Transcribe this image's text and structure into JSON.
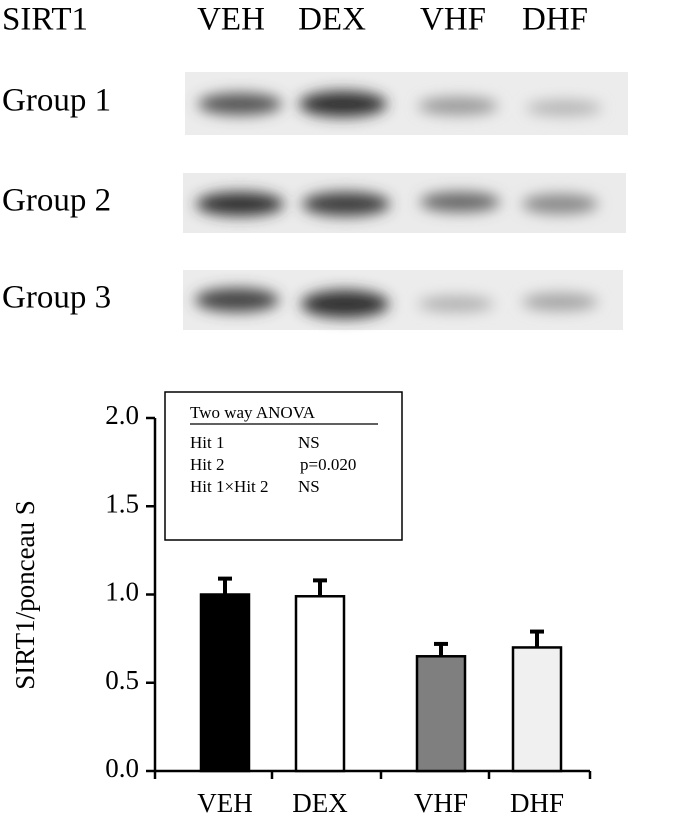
{
  "blot": {
    "label": "SIRT1",
    "lanes": [
      "VEH",
      "DEX",
      "VHF",
      "DHF"
    ],
    "groups": [
      "Group 1",
      "Group 2",
      "Group 3"
    ]
  },
  "chart_data": {
    "type": "bar",
    "ylabel": "SIRT1/ponceau S",
    "categories": [
      "VEH",
      "DEX",
      "VHF",
      "DHF"
    ],
    "values": [
      1.0,
      0.99,
      0.65,
      0.7
    ],
    "errors": [
      0.09,
      0.09,
      0.07,
      0.09
    ],
    "colors": [
      "#000000",
      "#ffffff",
      "#7f7f7f",
      "#f0f0f0"
    ],
    "ylim": [
      0,
      2
    ],
    "yticks": [
      {
        "value": 0,
        "label": "0.0"
      },
      {
        "value": 0.5,
        "label": "0.5"
      },
      {
        "value": 1,
        "label": "1.0"
      },
      {
        "value": 1.5,
        "label": "1.5"
      },
      {
        "value": 2,
        "label": "2.0"
      }
    ],
    "annotation": {
      "title": "Two way ANOVA",
      "rows": [
        [
          "Hit 1",
          "NS"
        ],
        [
          "Hit 2",
          "p=0.020"
        ],
        [
          "Hit 1×Hit 2",
          "NS"
        ]
      ]
    }
  }
}
